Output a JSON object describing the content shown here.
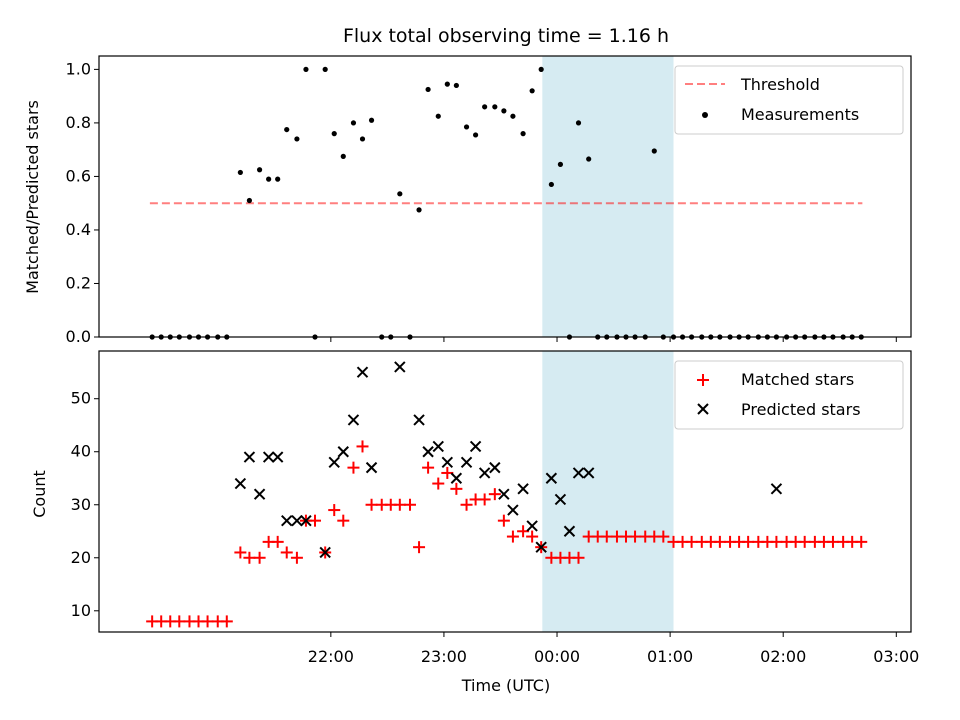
{
  "chart_data": [
    {
      "type": "scatter",
      "title": "Flux total observing time = 1.16 h",
      "ylabel": "Matched/Predicted stars",
      "xlabel": "",
      "x_unit": "hours since 00:00 UTC",
      "xlim": [
        -4.05,
        3.13
      ],
      "ylim": [
        0,
        1.05
      ],
      "yticks": [
        "0.0",
        "0.2",
        "0.4",
        "0.6",
        "0.8",
        "1.0"
      ],
      "highlight": {
        "x_start": -0.13,
        "x_end": 1.03,
        "color": "#add8e6"
      },
      "threshold": {
        "name": "Threshold",
        "y": 0.5,
        "x_range": [
          -3.6,
          2.7
        ],
        "color": "#ff0000"
      },
      "legend": {
        "loc": "upper right",
        "entries": [
          "Threshold",
          "Measurements"
        ]
      },
      "series": [
        {
          "name": "Measurements",
          "marker": "dot",
          "color": "#000000",
          "x": [
            -3.58,
            -3.5,
            -3.42,
            -3.34,
            -3.25,
            -3.17,
            -3.09,
            -3.0,
            -2.92,
            -2.8,
            -2.72,
            -2.63,
            -2.55,
            -2.47,
            -2.39,
            -2.3,
            -2.22,
            -2.14,
            -2.05,
            -1.97,
            -1.89,
            -1.8,
            -1.72,
            -1.64,
            -1.55,
            -1.47,
            -1.39,
            -1.3,
            -1.22,
            -1.14,
            -1.05,
            -0.97,
            -0.89,
            -0.8,
            -0.72,
            -0.64,
            -0.55,
            -0.47,
            -0.39,
            -0.3,
            -0.22,
            -0.14,
            -0.05,
            0.03,
            0.11,
            0.19,
            0.28,
            0.36,
            0.44,
            0.53,
            0.61,
            0.69,
            0.78,
            0.86,
            0.94,
            1.03,
            1.11,
            1.19,
            1.28,
            1.36,
            1.44,
            1.53,
            1.61,
            1.69,
            1.78,
            1.86,
            1.94,
            2.03,
            2.11,
            2.19,
            2.28,
            2.36,
            2.44,
            2.53,
            2.61,
            2.69
          ],
          "y": [
            0,
            0,
            0,
            0,
            0,
            0,
            0,
            0,
            0,
            0.615,
            0.51,
            0.625,
            0.59,
            0.59,
            0.775,
            0.74,
            1.0,
            0,
            1.0,
            0.76,
            0.675,
            0.8,
            0.74,
            0.81,
            0,
            0,
            0.535,
            0,
            0.475,
            0.925,
            0.825,
            0.945,
            0.94,
            0.785,
            0.755,
            0.86,
            0.86,
            0.845,
            0.825,
            0.76,
            0.92,
            1.0,
            0.57,
            0.645,
            0,
            0.8,
            0.665,
            0,
            0,
            0,
            0,
            0,
            0,
            0.695,
            0,
            0,
            0,
            0,
            0,
            0,
            0,
            0,
            0,
            0,
            0,
            0,
            0,
            0,
            0,
            0,
            0,
            0,
            0,
            0,
            0,
            0
          ]
        }
      ]
    },
    {
      "type": "scatter",
      "xlabel": "Time (UTC)",
      "ylabel": "Count",
      "x_unit": "hours since 00:00 UTC",
      "xlim": [
        -4.05,
        3.13
      ],
      "ylim": [
        6,
        59
      ],
      "yticks": [
        "10",
        "20",
        "30",
        "40",
        "50"
      ],
      "xticks": [
        "22:00",
        "23:00",
        "00:00",
        "01:00",
        "02:00",
        "03:00"
      ],
      "highlight": {
        "x_start": -0.13,
        "x_end": 1.03,
        "color": "#add8e6"
      },
      "legend": {
        "loc": "upper right",
        "entries": [
          "Matched stars",
          "Predicted stars"
        ]
      },
      "series": [
        {
          "name": "Matched stars",
          "marker": "plus",
          "color": "#ff0000",
          "x": [
            -3.58,
            -3.5,
            -3.42,
            -3.34,
            -3.25,
            -3.17,
            -3.09,
            -3.0,
            -2.92,
            -2.8,
            -2.72,
            -2.63,
            -2.55,
            -2.47,
            -2.39,
            -2.3,
            -2.22,
            -2.14,
            -2.05,
            -1.97,
            -1.89,
            -1.8,
            -1.72,
            -1.64,
            -1.55,
            -1.47,
            -1.39,
            -1.3,
            -1.22,
            -1.14,
            -1.05,
            -0.97,
            -0.89,
            -0.8,
            -0.72,
            -0.64,
            -0.55,
            -0.47,
            -0.39,
            -0.3,
            -0.22,
            -0.14,
            -0.05,
            0.03,
            0.11,
            0.19,
            0.28,
            0.36,
            0.44,
            0.53,
            0.61,
            0.69,
            0.78,
            0.86,
            0.94,
            1.03,
            1.11,
            1.19,
            1.28,
            1.36,
            1.44,
            1.53,
            1.61,
            1.69,
            1.78,
            1.86,
            1.94,
            2.03,
            2.11,
            2.19,
            2.28,
            2.36,
            2.44,
            2.53,
            2.61,
            2.69
          ],
          "y": [
            8,
            8,
            8,
            8,
            8,
            8,
            8,
            8,
            8,
            21,
            20,
            20,
            23,
            23,
            21,
            20,
            27,
            27,
            21,
            29,
            27,
            37,
            41,
            30,
            30,
            30,
            30,
            30,
            22,
            37,
            34,
            36,
            33,
            30,
            31,
            31,
            32,
            27,
            24,
            25,
            24,
            22,
            20,
            20,
            20,
            20,
            24,
            24,
            24,
            24,
            24,
            24,
            24,
            24,
            24,
            23,
            23,
            23,
            23,
            23,
            23,
            23,
            23,
            23,
            23,
            23,
            23,
            23,
            23,
            23,
            23,
            23,
            23,
            23,
            23,
            23
          ]
        },
        {
          "name": "Predicted stars",
          "marker": "x",
          "color": "#000000",
          "x": [
            -2.8,
            -2.72,
            -2.63,
            -2.55,
            -2.47,
            -2.39,
            -2.3,
            -2.22,
            -2.05,
            -1.97,
            -1.89,
            -1.8,
            -1.72,
            -1.64,
            -1.39,
            -1.22,
            -1.14,
            -1.05,
            -0.97,
            -0.89,
            -0.8,
            -0.72,
            -0.64,
            -0.55,
            -0.47,
            -0.39,
            -0.3,
            -0.22,
            -0.14,
            -0.05,
            0.03,
            0.11,
            0.19,
            0.28,
            1.94
          ],
          "y": [
            34,
            39,
            32,
            39,
            39,
            27,
            27,
            27,
            21,
            38,
            40,
            46,
            55,
            37,
            56,
            46,
            40,
            41,
            38,
            35,
            38,
            41,
            36,
            37,
            32,
            29,
            33,
            26,
            22,
            35,
            31,
            25,
            36,
            36,
            33
          ]
        }
      ]
    }
  ]
}
